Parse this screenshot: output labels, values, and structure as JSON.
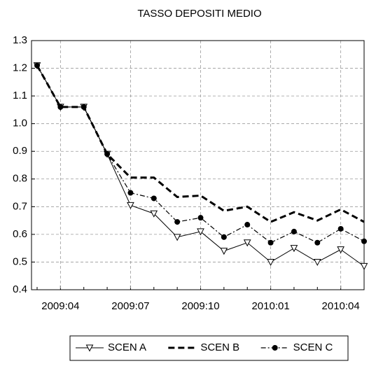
{
  "chart_data": {
    "type": "line",
    "title": "TASSO DEPOSITI MEDIO",
    "categories": [
      null,
      "2009:04",
      null,
      null,
      "2009:07",
      null,
      null,
      "2009:10",
      null,
      null,
      "2010:01",
      null,
      null,
      "2010:04",
      null
    ],
    "series": [
      {
        "name": "SCEN A",
        "color": "#000000",
        "dash": "solid",
        "marker": "triangle-down",
        "values": [
          1.21,
          1.06,
          1.06,
          0.89,
          0.705,
          0.675,
          0.59,
          0.61,
          0.54,
          0.57,
          0.5,
          0.55,
          0.5,
          0.545,
          0.485
        ]
      },
      {
        "name": "SCEN B",
        "color": "#000000",
        "dash": "dashed",
        "marker": "none",
        "values": [
          1.21,
          1.06,
          1.06,
          0.89,
          0.805,
          0.805,
          0.735,
          0.74,
          0.685,
          0.7,
          0.645,
          0.68,
          0.65,
          0.69,
          0.645
        ]
      },
      {
        "name": "SCEN C",
        "color": "#000000",
        "dash": "dashdot",
        "marker": "circle",
        "values": [
          1.21,
          1.06,
          1.06,
          0.89,
          0.75,
          0.73,
          0.645,
          0.66,
          0.59,
          0.635,
          0.57,
          0.61,
          0.57,
          0.62,
          0.575
        ]
      }
    ],
    "ylim": [
      0.4,
      1.3
    ],
    "yticks": [
      0.4,
      0.5,
      0.6,
      0.7,
      0.8,
      0.9,
      {
        "value": 1,
        "label": "1.0"
      },
      1.1,
      1.2,
      1.3
    ],
    "grid": true,
    "legend": "bottom"
  }
}
